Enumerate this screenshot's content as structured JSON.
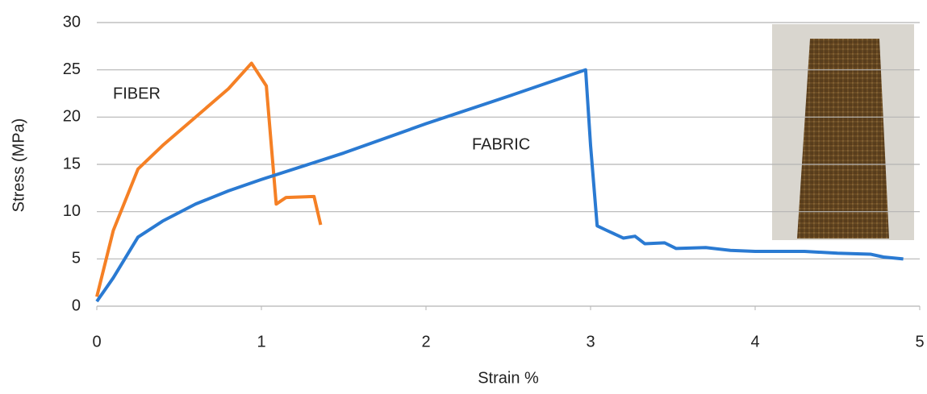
{
  "chart_data": {
    "type": "line",
    "x_label": "Strain %",
    "y_label": "Stress (MPa)",
    "xlim": [
      0,
      5
    ],
    "xticks": [
      0,
      1,
      2,
      3,
      4,
      5
    ],
    "ylim": [
      0,
      30
    ],
    "yticks": [
      0,
      5,
      10,
      15,
      20,
      25,
      30
    ],
    "grid": true,
    "series": [
      {
        "name": "FIBER",
        "color": "#f58025",
        "x": [
          0,
          0.1,
          0.25,
          0.4,
          0.6,
          0.8,
          0.94,
          1.03,
          1.09,
          1.15,
          1.32,
          1.36
        ],
        "values": [
          1,
          8,
          14.5,
          17,
          20,
          23,
          25.7,
          23.3,
          10.8,
          11.5,
          11.6,
          8.6
        ]
      },
      {
        "name": "FABRIC",
        "color": "#2a7ad2",
        "x": [
          0,
          0.1,
          0.25,
          0.4,
          0.6,
          0.8,
          1.0,
          1.5,
          2,
          2.5,
          2.97,
          3.0,
          3.04,
          3.1,
          3.2,
          3.27,
          3.33,
          3.45,
          3.52,
          3.7,
          3.85,
          4.0,
          4.3,
          4.5,
          4.7,
          4.78,
          4.9
        ],
        "values": [
          0.5,
          3,
          7.3,
          9,
          10.8,
          12.2,
          13.4,
          16.2,
          19.3,
          22.2,
          25,
          17,
          8.5,
          8,
          7.2,
          7.4,
          6.6,
          6.7,
          6.1,
          6.2,
          5.9,
          5.8,
          5.8,
          5.6,
          5.5,
          5.2,
          5.0
        ]
      }
    ]
  }
}
